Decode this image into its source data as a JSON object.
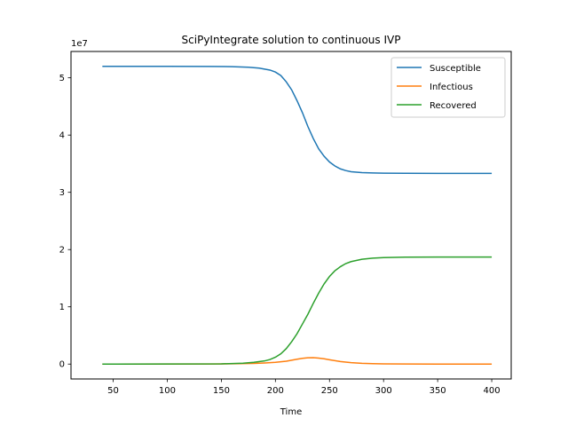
{
  "chart_data": {
    "type": "line",
    "title": "SciPyIntegrate solution to continuous IVP",
    "xlabel": "Time",
    "ylabel": "",
    "offset_label": "1e7",
    "xlim": [
      11,
      418
    ],
    "ylim": [
      -2.6,
      54.6
    ],
    "xticks": [
      50,
      100,
      150,
      200,
      250,
      300,
      350,
      400
    ],
    "yticks": [
      0,
      1,
      2,
      3,
      4,
      5
    ],
    "legend_position": "top-right",
    "grid": false,
    "series": [
      {
        "name": "Susceptible",
        "color": "#1f77b4",
        "points": [
          [
            40,
            52.0
          ],
          [
            100,
            52.0
          ],
          [
            140,
            51.98
          ],
          [
            160,
            51.95
          ],
          [
            175,
            51.85
          ],
          [
            185,
            51.7
          ],
          [
            195,
            51.35
          ],
          [
            200,
            51.0
          ],
          [
            205,
            50.4
          ],
          [
            210,
            49.3
          ],
          [
            215,
            47.9
          ],
          [
            220,
            46.0
          ],
          [
            225,
            43.9
          ],
          [
            230,
            41.5
          ],
          [
            235,
            39.4
          ],
          [
            240,
            37.6
          ],
          [
            245,
            36.3
          ],
          [
            250,
            35.3
          ],
          [
            255,
            34.6
          ],
          [
            260,
            34.1
          ],
          [
            265,
            33.8
          ],
          [
            270,
            33.6
          ],
          [
            280,
            33.45
          ],
          [
            290,
            33.38
          ],
          [
            300,
            33.34
          ],
          [
            320,
            33.32
          ],
          [
            350,
            33.3
          ],
          [
            400,
            33.3
          ]
        ]
      },
      {
        "name": "Infectious",
        "color": "#ff7f0e",
        "points": [
          [
            40,
            0.0
          ],
          [
            140,
            0.02
          ],
          [
            160,
            0.05
          ],
          [
            180,
            0.12
          ],
          [
            190,
            0.2
          ],
          [
            200,
            0.3
          ],
          [
            210,
            0.5
          ],
          [
            220,
            0.85
          ],
          [
            225,
            1.0
          ],
          [
            230,
            1.1
          ],
          [
            235,
            1.12
          ],
          [
            240,
            1.05
          ],
          [
            245,
            0.92
          ],
          [
            250,
            0.75
          ],
          [
            260,
            0.45
          ],
          [
            270,
            0.25
          ],
          [
            280,
            0.13
          ],
          [
            290,
            0.07
          ],
          [
            300,
            0.04
          ],
          [
            320,
            0.01
          ],
          [
            350,
            0.0
          ],
          [
            400,
            0.0
          ]
        ]
      },
      {
        "name": "Recovered",
        "color": "#2ca02c",
        "points": [
          [
            40,
            0.0
          ],
          [
            150,
            0.04
          ],
          [
            170,
            0.15
          ],
          [
            180,
            0.3
          ],
          [
            190,
            0.55
          ],
          [
            195,
            0.8
          ],
          [
            200,
            1.2
          ],
          [
            205,
            1.8
          ],
          [
            210,
            2.7
          ],
          [
            215,
            3.9
          ],
          [
            220,
            5.3
          ],
          [
            225,
            7.0
          ],
          [
            230,
            8.7
          ],
          [
            235,
            10.6
          ],
          [
            240,
            12.4
          ],
          [
            245,
            14.0
          ],
          [
            250,
            15.3
          ],
          [
            255,
            16.3
          ],
          [
            260,
            17.0
          ],
          [
            265,
            17.55
          ],
          [
            270,
            17.9
          ],
          [
            280,
            18.3
          ],
          [
            290,
            18.5
          ],
          [
            300,
            18.6
          ],
          [
            320,
            18.67
          ],
          [
            350,
            18.7
          ],
          [
            400,
            18.7
          ]
        ]
      }
    ]
  }
}
